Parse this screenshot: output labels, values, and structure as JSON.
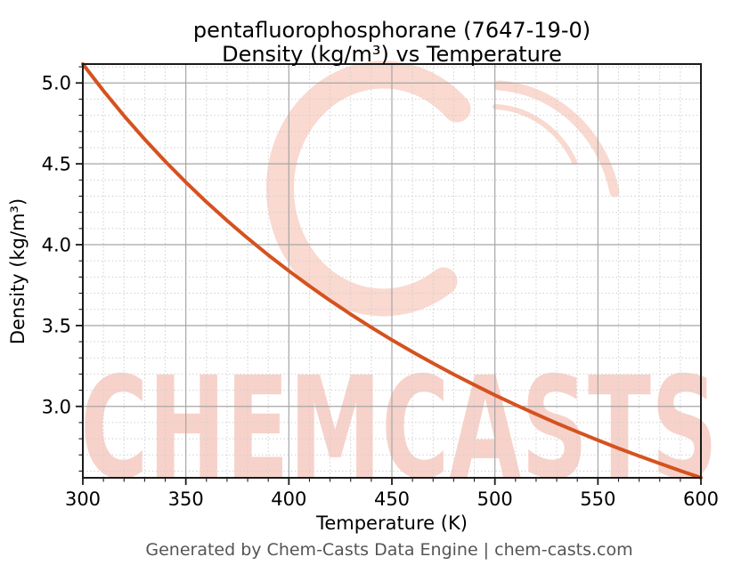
{
  "chart_data": {
    "type": "line",
    "title_lines": [
      "pentafluorophosphorane (7647-19-0)",
      "Density (kg/m³) vs Temperature"
    ],
    "xlabel": "Temperature (K)",
    "ylabel": "Density (kg/m³)",
    "xlim": [
      300,
      600
    ],
    "ylim": [
      2.5585,
      5.1169
    ],
    "xticks_major": [
      300,
      350,
      400,
      450,
      500,
      550,
      600
    ],
    "xtick_minor_step": 10,
    "yticks_major": [
      3.0,
      3.5,
      4.0,
      4.5,
      5.0
    ],
    "ytick_minor_step": 0.1,
    "grid": true,
    "legend_position": "none",
    "series": [
      {
        "name": "Density (kg/m³)",
        "color": "#d5521f",
        "x": [
          300,
          310,
          320,
          330,
          340,
          350,
          360,
          370,
          380,
          390,
          400,
          410,
          420,
          430,
          440,
          450,
          460,
          470,
          480,
          490,
          500,
          510,
          520,
          530,
          540,
          550,
          560,
          570,
          580,
          590,
          600
        ],
        "y": [
          5.117,
          4.952,
          4.797,
          4.652,
          4.515,
          4.386,
          4.264,
          4.149,
          4.04,
          3.936,
          3.838,
          3.744,
          3.655,
          3.57,
          3.489,
          3.411,
          3.337,
          3.266,
          3.198,
          3.133,
          3.07,
          3.01,
          2.952,
          2.896,
          2.843,
          2.791,
          2.741,
          2.693,
          2.647,
          2.602,
          2.559
        ]
      }
    ]
  },
  "colors": {
    "curve": "#d5521f",
    "spine": "#1a1a1a",
    "grid_major": "#a6a6a6",
    "grid_minor": "#cfcfcf",
    "tick_label": "#000000",
    "footer": "#555555",
    "watermark": "rgba(224,80,50,0.26)",
    "watermark_swirl": "rgba(228,95,60,0.24)"
  },
  "watermark": {
    "text": "CHEMCASTS",
    "logo_icon": "c-swirl-icon"
  },
  "footer": {
    "text": "Generated by Chem-Casts Data Engine | chem-casts.com"
  }
}
